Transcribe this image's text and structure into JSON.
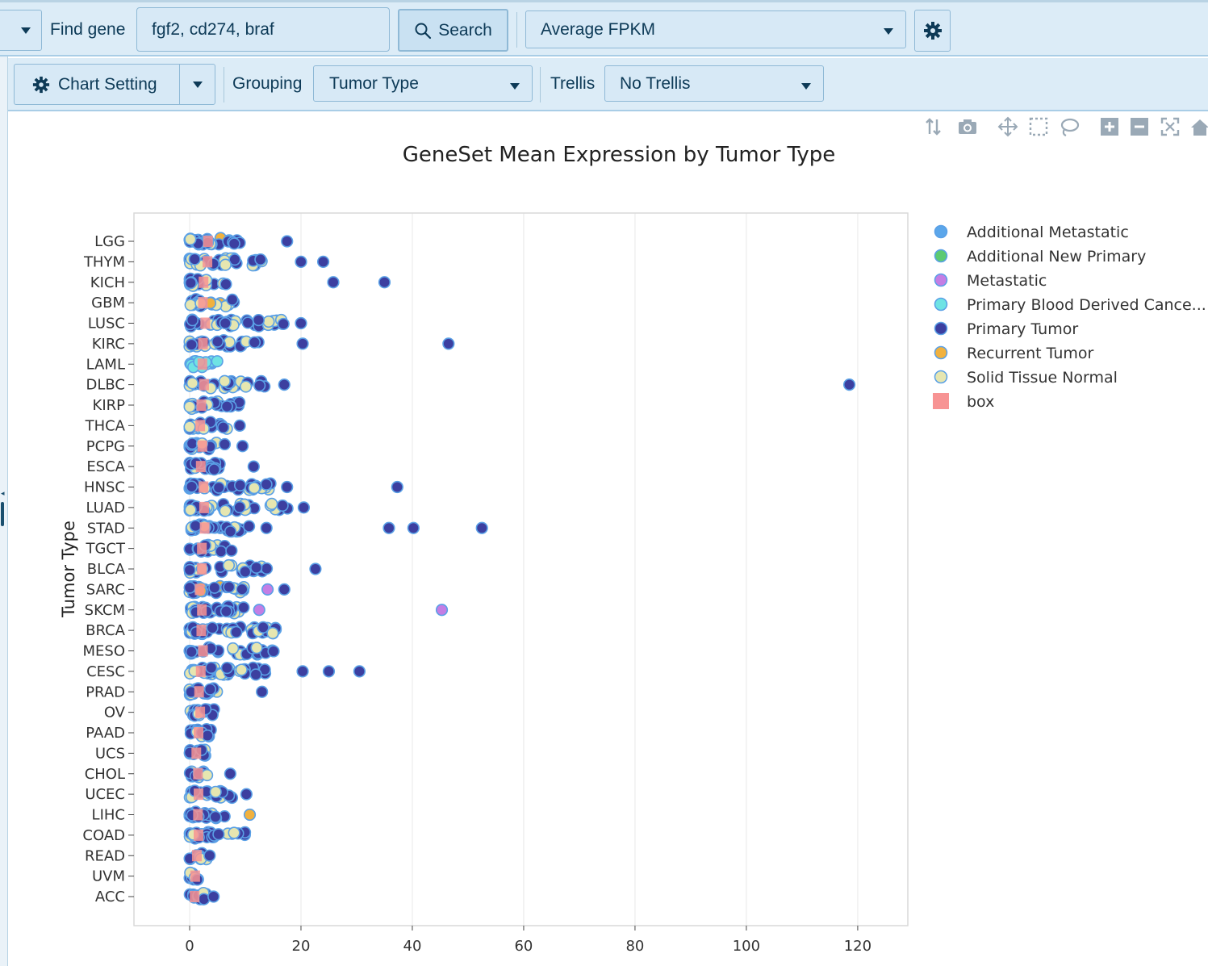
{
  "toolbar": {
    "find_gene_label": "Find gene",
    "gene_input_value": "fgf2, cd274, braf",
    "search_label": "Search",
    "measure_value": "Average FPKM"
  },
  "subtoolbar": {
    "chart_setting_label": "Chart Setting",
    "grouping_label": "Grouping",
    "grouping_value": "Tumor Type",
    "trellis_label": "Trellis",
    "trellis_value": "No Trellis"
  },
  "modebar_icons": [
    "sort-icon",
    "camera-icon",
    "pan-icon",
    "box-select-icon",
    "lasso-icon",
    "zoom-in-icon",
    "zoom-out-icon",
    "autoscale-icon",
    "home-icon"
  ],
  "chart_data": {
    "type": "scatter",
    "title": "GeneSet Mean Expression by Tumor Type",
    "ylabel": "Tumor Type",
    "xlabel": "",
    "xlim": [
      -10,
      129
    ],
    "xticks": [
      0,
      20,
      40,
      60,
      80,
      100,
      120
    ],
    "grid": true,
    "legend_position": "right",
    "categories": [
      "LGG",
      "THYM",
      "KICH",
      "GBM",
      "LUSC",
      "KIRC",
      "LAML",
      "DLBC",
      "KIRP",
      "THCA",
      "PCPG",
      "ESCA",
      "HNSC",
      "LUAD",
      "STAD",
      "TGCT",
      "BLCA",
      "SARC",
      "SKCM",
      "BRCA",
      "MESO",
      "CESC",
      "PRAD",
      "OV",
      "PAAD",
      "UCS",
      "CHOL",
      "UCEC",
      "LIHC",
      "COAD",
      "READ",
      "UVM",
      "ACC"
    ],
    "clusters": [
      {
        "cat": "LGG",
        "lo": 0,
        "hi": 10,
        "n": 30,
        "median": 3.3
      },
      {
        "cat": "THYM",
        "lo": 0,
        "hi": 14,
        "n": 30,
        "median": 3.2
      },
      {
        "cat": "KICH",
        "lo": 0,
        "hi": 7,
        "n": 20,
        "median": 2.5
      },
      {
        "cat": "GBM",
        "lo": 0,
        "hi": 8,
        "n": 20,
        "median": 2.4
      },
      {
        "cat": "LUSC",
        "lo": 0,
        "hi": 18,
        "n": 40,
        "median": 2.8
      },
      {
        "cat": "KIRC",
        "lo": 0,
        "hi": 13,
        "n": 30,
        "median": 2.4
      },
      {
        "cat": "LAML",
        "lo": 0,
        "hi": 5,
        "n": 16,
        "median": 2.3
      },
      {
        "cat": "DLBC",
        "lo": 0,
        "hi": 14,
        "n": 26,
        "median": 2.6
      },
      {
        "cat": "KIRP",
        "lo": 0,
        "hi": 9,
        "n": 22,
        "median": 2.1
      },
      {
        "cat": "THCA",
        "lo": 0,
        "hi": 7,
        "n": 20,
        "median": 1.9
      },
      {
        "cat": "PCPG",
        "lo": 0,
        "hi": 7,
        "n": 20,
        "median": 2.3
      },
      {
        "cat": "ESCA",
        "lo": 0,
        "hi": 6,
        "n": 18,
        "median": 2.0
      },
      {
        "cat": "HNSC",
        "lo": 0,
        "hi": 15,
        "n": 36,
        "median": 2.5
      },
      {
        "cat": "LUAD",
        "lo": 0,
        "hi": 18,
        "n": 40,
        "median": 2.6
      },
      {
        "cat": "STAD",
        "lo": 0,
        "hi": 11,
        "n": 30,
        "median": 2.7
      },
      {
        "cat": "TGCT",
        "lo": 0,
        "hi": 8,
        "n": 20,
        "median": 2.2
      },
      {
        "cat": "BLCA",
        "lo": 0,
        "hi": 14,
        "n": 30,
        "median": 2.2
      },
      {
        "cat": "SARC",
        "lo": 0,
        "hi": 10,
        "n": 28,
        "median": 1.8
      },
      {
        "cat": "SKCM",
        "lo": 0,
        "hi": 10,
        "n": 36,
        "median": 2.2
      },
      {
        "cat": "BRCA",
        "lo": 0,
        "hi": 16,
        "n": 44,
        "median": 2.1
      },
      {
        "cat": "MESO",
        "lo": 0,
        "hi": 16,
        "n": 30,
        "median": 2.4
      },
      {
        "cat": "CESC",
        "lo": 0,
        "hi": 16,
        "n": 34,
        "median": 2.0
      },
      {
        "cat": "PRAD",
        "lo": 0,
        "hi": 5,
        "n": 18,
        "median": 1.7
      },
      {
        "cat": "OV",
        "lo": 0,
        "hi": 5,
        "n": 16,
        "median": 1.9
      },
      {
        "cat": "PAAD",
        "lo": 0,
        "hi": 5,
        "n": 16,
        "median": 1.6
      },
      {
        "cat": "UCS",
        "lo": 0,
        "hi": 3,
        "n": 10,
        "median": 1.2
      },
      {
        "cat": "CHOL",
        "lo": 0,
        "hi": 4,
        "n": 12,
        "median": 1.5
      },
      {
        "cat": "UCEC",
        "lo": 0,
        "hi": 8,
        "n": 24,
        "median": 1.6
      },
      {
        "cat": "LIHC",
        "lo": 0,
        "hi": 8,
        "n": 22,
        "median": 1.5
      },
      {
        "cat": "COAD",
        "lo": 0,
        "hi": 10,
        "n": 30,
        "median": 1.6
      },
      {
        "cat": "READ",
        "lo": 0,
        "hi": 4,
        "n": 12,
        "median": 1.3
      },
      {
        "cat": "UVM",
        "lo": 0,
        "hi": 2,
        "n": 8,
        "median": 1.0
      },
      {
        "cat": "ACC",
        "lo": 0,
        "hi": 3,
        "n": 12,
        "median": 0.9
      }
    ],
    "outliers": [
      {
        "cat": "LGG",
        "x": 17.5
      },
      {
        "cat": "THYM",
        "x": 20
      },
      {
        "cat": "THYM",
        "x": 24
      },
      {
        "cat": "KICH",
        "x": 25.8
      },
      {
        "cat": "KICH",
        "x": 35
      },
      {
        "cat": "LUSC",
        "x": 20
      },
      {
        "cat": "KIRC",
        "x": 20.3
      },
      {
        "cat": "KIRC",
        "x": 46.5
      },
      {
        "cat": "DLBC",
        "x": 17
      },
      {
        "cat": "DLBC",
        "x": 118.5
      },
      {
        "cat": "THCA",
        "x": 9
      },
      {
        "cat": "PCPG",
        "x": 9.5
      },
      {
        "cat": "ESCA",
        "x": 11.5
      },
      {
        "cat": "HNSC",
        "x": 17.5
      },
      {
        "cat": "HNSC",
        "x": 37.3
      },
      {
        "cat": "LUAD",
        "x": 20.5
      },
      {
        "cat": "STAD",
        "x": 13.8
      },
      {
        "cat": "STAD",
        "x": 35.8
      },
      {
        "cat": "STAD",
        "x": 40.2
      },
      {
        "cat": "STAD",
        "x": 52.5
      },
      {
        "cat": "BLCA",
        "x": 22.6
      },
      {
        "cat": "SARC",
        "x": 17
      },
      {
        "cat": "SARC",
        "x": 14,
        "type": "Metastatic"
      },
      {
        "cat": "SKCM",
        "x": 12.5,
        "type": "Metastatic"
      },
      {
        "cat": "SKCM",
        "x": 45.3,
        "type": "Metastatic"
      },
      {
        "cat": "CESC",
        "x": 20.3
      },
      {
        "cat": "CESC",
        "x": 25
      },
      {
        "cat": "CESC",
        "x": 30.5
      },
      {
        "cat": "PRAD",
        "x": 13
      },
      {
        "cat": "CHOL",
        "x": 7.3
      },
      {
        "cat": "UCEC",
        "x": 10.2
      },
      {
        "cat": "LIHC",
        "x": 10.8,
        "type": "Recurrent Tumor"
      },
      {
        "cat": "ACC",
        "x": 4.3
      }
    ],
    "legend": [
      {
        "name": "Additional Metastatic",
        "color": "#5ba6ea",
        "shape": "circle"
      },
      {
        "name": "Additional New Primary",
        "color": "#5dca72",
        "shape": "circle"
      },
      {
        "name": "Metastatic",
        "color": "#c47ee4",
        "shape": "circle"
      },
      {
        "name": "Primary Blood Derived Cance...",
        "color": "#6ee3e4",
        "shape": "circle"
      },
      {
        "name": "Primary Tumor",
        "color": "#3c3fa0",
        "shape": "circle"
      },
      {
        "name": "Recurrent Tumor",
        "color": "#f1b13e",
        "shape": "circle"
      },
      {
        "name": "Solid Tissue Normal",
        "color": "#e6e6b0",
        "shape": "circle"
      },
      {
        "name": "box",
        "color": "#f79393",
        "shape": "square"
      }
    ]
  }
}
